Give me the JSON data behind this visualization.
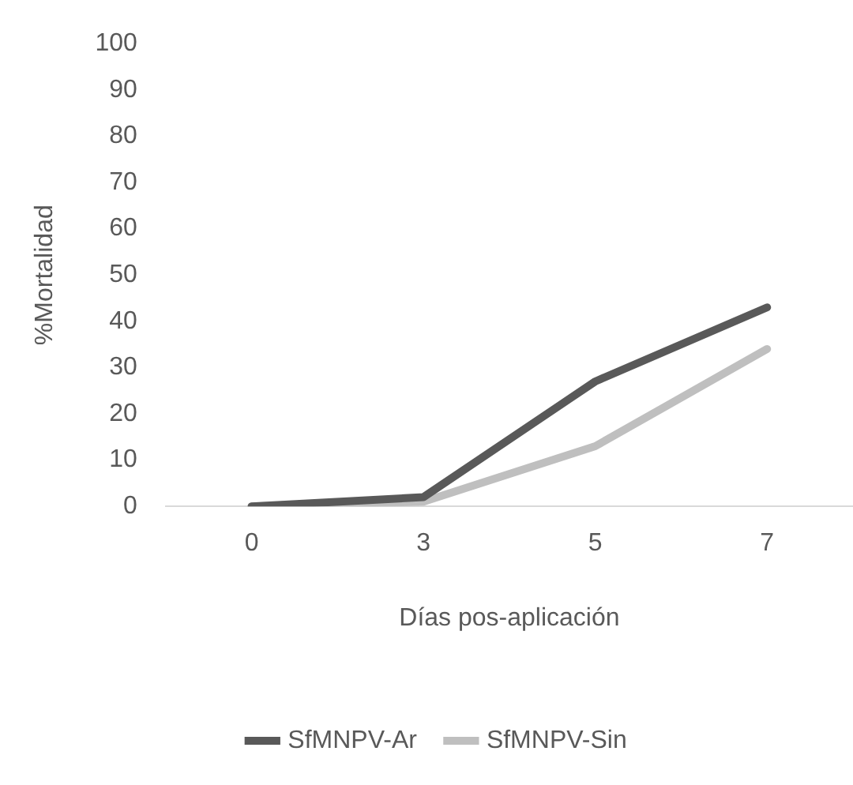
{
  "chart_data": {
    "type": "line",
    "xlabel": "Días pos-aplicación",
    "ylabel": "%Mortalidad",
    "categories": [
      "0",
      "3",
      "5",
      "7"
    ],
    "series": [
      {
        "name": "SfMNPV-Ar",
        "color": "#595959",
        "values": [
          0,
          2,
          27,
          43
        ]
      },
      {
        "name": "SfMNPV-Sin",
        "color": "#bfbfbf",
        "values": [
          0,
          1,
          13,
          34
        ]
      }
    ],
    "ylim": [
      0,
      100
    ],
    "yticks": [
      0,
      10,
      20,
      30,
      40,
      50,
      60,
      70,
      80,
      90,
      100
    ],
    "grid": false,
    "legend": "bottom",
    "marker": "none",
    "line_style": "solid"
  }
}
